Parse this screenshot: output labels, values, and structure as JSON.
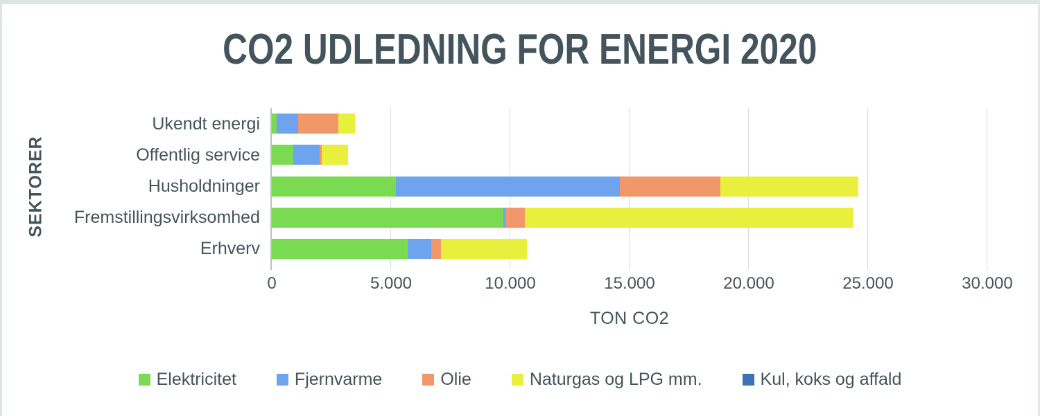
{
  "chart_data": {
    "type": "bar",
    "orientation": "horizontal",
    "stacked": true,
    "title": "CO2 UDLEDNING FOR ENERGI 2020",
    "xlabel": "TON CO2",
    "ylabel": "SEKTORER",
    "xlim": [
      0,
      30000
    ],
    "x_tick_values": [
      0,
      5000,
      10000,
      15000,
      20000,
      25000,
      30000
    ],
    "x_tick_labels": [
      "0",
      "5.000",
      "10.000",
      "15.000",
      "20.000",
      "25.000",
      "30.000"
    ],
    "grid": true,
    "legend_position": "bottom",
    "categories": [
      "Ukendt energi",
      "Offentlig service",
      "Husholdninger",
      "Fremstillingsvirksomhed",
      "Erhverv"
    ],
    "series": [
      {
        "name": "Elektricitet",
        "color": "#7ada52",
        "values": [
          200,
          900,
          5200,
          9700,
          5700
        ]
      },
      {
        "name": "Fjernvarme",
        "color": "#6ea3ee",
        "values": [
          900,
          1100,
          9400,
          100,
          1000
        ]
      },
      {
        "name": "Olie",
        "color": "#f2976a",
        "values": [
          1700,
          100,
          4200,
          800,
          400
        ]
      },
      {
        "name": "Naturgas og LPG mm.",
        "color": "#e8ef3d",
        "values": [
          700,
          1100,
          5800,
          13800,
          3600
        ]
      },
      {
        "name": "Kul, koks og affald",
        "color": "#3b73b7",
        "values": [
          0,
          0,
          0,
          0,
          0
        ]
      }
    ]
  },
  "colors": {
    "text": "#45545a",
    "title": "#44545c",
    "gridline": "#d8dcda",
    "axis_line": "#b7c2bf",
    "frame": "#dde5e2",
    "background": "#ffffff"
  }
}
